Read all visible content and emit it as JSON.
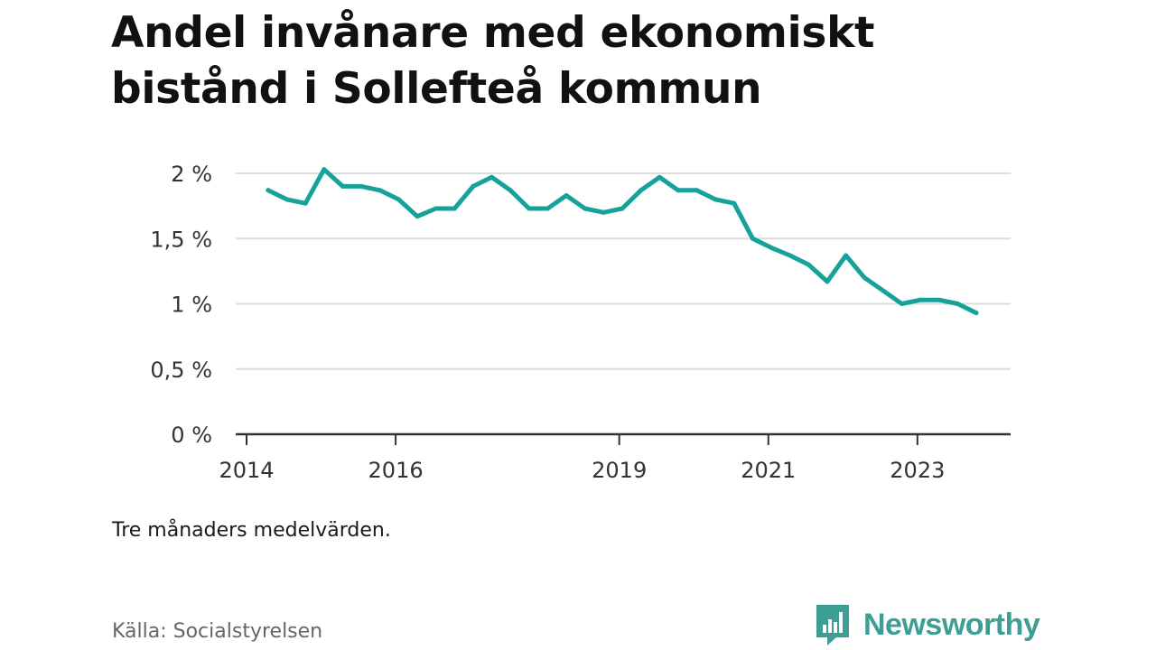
{
  "title": "Andel invånare med ekonomiskt bistånd i Sollefteå kommun",
  "note": "Tre månaders medelvärden.",
  "source": "Källa: Socialstyrelsen",
  "brand": {
    "name": "Newsworthy",
    "icon": "newsworthy-logo-icon",
    "color": "#3c9e95"
  },
  "colors": {
    "line": "#16a29a",
    "grid": "#dcdcdc",
    "axis": "#333333"
  },
  "chart_data": {
    "type": "line",
    "title": "Andel invånare med ekonomiskt bistånd i Sollefteå kommun",
    "xlabel": "",
    "ylabel": "",
    "xlim": [
      2014.0,
      2024.25
    ],
    "ylim": [
      0,
      2
    ],
    "grid": true,
    "yticks": [
      {
        "value": 0,
        "label": "0 %"
      },
      {
        "value": 0.5,
        "label": "0,5 %"
      },
      {
        "value": 1,
        "label": "1 %"
      },
      {
        "value": 1.5,
        "label": "1,5 %"
      },
      {
        "value": 2,
        "label": "2 %"
      }
    ],
    "xticks": [
      {
        "value": 2014,
        "label": "2014"
      },
      {
        "value": 2016,
        "label": "2016"
      },
      {
        "value": 2019,
        "label": "2019"
      },
      {
        "value": 2021,
        "label": "2021"
      },
      {
        "value": 2023,
        "label": "2023"
      }
    ],
    "series": [
      {
        "x": [
          2014.29,
          2014.54,
          2014.79,
          2015.04,
          2015.29,
          2015.54,
          2015.79,
          2016.04,
          2016.29,
          2016.54,
          2016.79,
          2017.04,
          2017.29,
          2017.54,
          2017.79,
          2018.04,
          2018.29,
          2018.54,
          2018.79,
          2019.04,
          2019.29,
          2019.54,
          2019.79,
          2020.04,
          2020.29,
          2020.54,
          2020.79,
          2021.04,
          2021.29,
          2021.54,
          2021.79,
          2022.04,
          2022.29,
          2022.54,
          2022.79,
          2023.04,
          2023.29,
          2023.54,
          2023.79
        ],
        "values": [
          1.87,
          1.8,
          1.77,
          2.03,
          1.9,
          1.9,
          1.87,
          1.8,
          1.67,
          1.73,
          1.73,
          1.9,
          1.97,
          1.87,
          1.73,
          1.73,
          1.83,
          1.73,
          1.7,
          1.73,
          1.87,
          1.97,
          1.87,
          1.87,
          1.8,
          1.77,
          1.5,
          1.43,
          1.37,
          1.3,
          1.17,
          1.37,
          1.2,
          1.1,
          1.0,
          1.03,
          1.03,
          1.0,
          0.93
        ]
      }
    ]
  }
}
